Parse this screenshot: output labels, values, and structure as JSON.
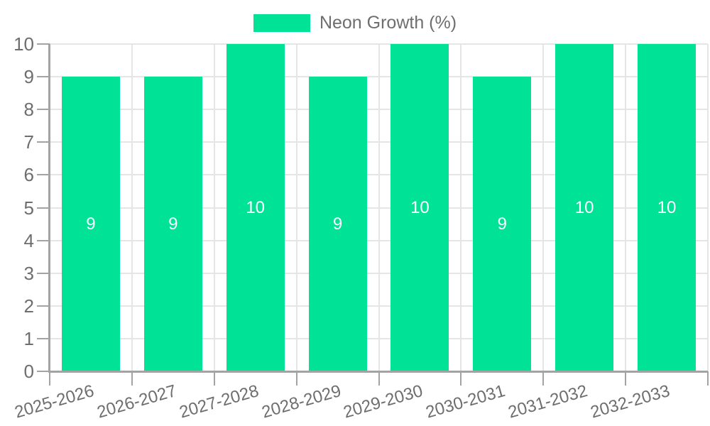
{
  "colors": {
    "accent": "#00E396",
    "grid": "#E5E5E5",
    "axis": "#A3A3A3",
    "text": "#6E6E6E",
    "data_label": "#FFFFFF",
    "background": "#FFFFFF"
  },
  "chart_data": {
    "type": "bar",
    "title": "",
    "legend": {
      "position": "top",
      "label": "Neon Growth (%)"
    },
    "categories": [
      "2025-2026",
      "2026-2027",
      "2027-2028",
      "2028-2029",
      "2029-2030",
      "2030-2031",
      "2031-2032",
      "2032-2033"
    ],
    "series": [
      {
        "name": "Neon Growth (%)",
        "color": "#00E396",
        "values": [
          9,
          9,
          10,
          9,
          10,
          9,
          10,
          10
        ]
      }
    ],
    "data_labels": [
      "9",
      "9",
      "10",
      "9",
      "10",
      "9",
      "10",
      "10"
    ],
    "ylabel": "",
    "xlabel": "",
    "ylim": [
      0,
      10
    ],
    "yticks": [
      0,
      1,
      2,
      3,
      4,
      5,
      6,
      7,
      8,
      9,
      10
    ],
    "grid": true,
    "data_labels_visible": true
  }
}
